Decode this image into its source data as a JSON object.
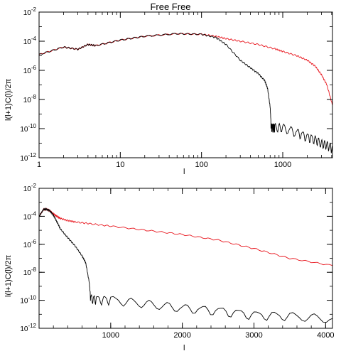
{
  "chart_data": [
    {
      "type": "line",
      "title": "Free Free",
      "xlabel": "l",
      "ylabel": "l(l+1)C(l)/2π",
      "xscale": "log",
      "yscale": "log",
      "xlim": [
        1,
        4096
      ],
      "ylim": [
        1e-12,
        0.01
      ],
      "xticks": [
        {
          "v": 1,
          "label": "1"
        },
        {
          "v": 10,
          "label": "10"
        },
        {
          "v": 100,
          "label": "100"
        },
        {
          "v": 1000,
          "label": "1000"
        }
      ],
      "yticks": [
        {
          "v": 0.01,
          "base": "10",
          "exp": "-2"
        },
        {
          "v": 0.0001,
          "base": "10",
          "exp": "-4"
        },
        {
          "v": 1e-06,
          "base": "10",
          "exp": "-6"
        },
        {
          "v": 1e-08,
          "base": "10",
          "exp": "-8"
        },
        {
          "v": 1e-10,
          "base": "10",
          "exp": "-10"
        },
        {
          "v": 1e-12,
          "base": "10",
          "exp": "-12"
        }
      ],
      "series": [
        {
          "color": "#e8141c",
          "x": [
            1,
            2,
            3,
            4,
            5,
            10,
            20,
            50,
            100,
            150,
            200,
            300,
            500,
            800,
            1000,
            1500,
            2000,
            2500,
            3000,
            3500,
            4096
          ],
          "y": [
            1.2e-05,
            4e-05,
            2.8e-05,
            6e-05,
            5e-05,
            0.00012,
            0.00022,
            0.00033,
            0.0003,
            0.00022,
            0.00015,
            0.0001,
            6e-05,
            3e-05,
            2e-05,
            1e-05,
            5e-06,
            2e-06,
            5e-07,
            1e-07,
            4e-09
          ]
        },
        {
          "color": "#000000",
          "x": [
            1,
            2,
            3,
            4,
            5,
            10,
            20,
            50,
            100,
            150,
            200,
            300,
            400,
            500,
            600,
            650,
            700,
            720,
            760,
            800,
            1000,
            1500,
            2000,
            2500,
            3000,
            3500,
            4096
          ],
          "y": [
            1.2e-05,
            4e-05,
            2.8e-05,
            6e-05,
            5e-05,
            0.00012,
            0.00022,
            0.00033,
            0.0003,
            0.00018,
            6e-05,
            5e-06,
            1.5e-06,
            6e-07,
            2e-07,
            6e-08,
            3e-09,
            1.5e-10,
            1.4e-10,
            1.3e-10,
            1.2e-10,
            6e-11,
            3e-11,
            2e-11,
            1e-11,
            8e-12,
            5e-12
          ]
        }
      ]
    },
    {
      "type": "line",
      "title": "",
      "xlabel": "l",
      "ylabel": "l(l+1)C(l)/2π",
      "xscale": "linear",
      "yscale": "log",
      "xlim": [
        0,
        4096
      ],
      "ylim": [
        1e-12,
        0.01
      ],
      "xticks": [
        {
          "v": 1000,
          "label": "1000"
        },
        {
          "v": 2000,
          "label": "2000"
        },
        {
          "v": 3000,
          "label": "3000"
        },
        {
          "v": 4000,
          "label": "4000"
        }
      ],
      "yticks": [
        {
          "v": 0.01,
          "base": "10",
          "exp": "-2"
        },
        {
          "v": 0.0001,
          "base": "10",
          "exp": "-4"
        },
        {
          "v": 1e-06,
          "base": "10",
          "exp": "-6"
        },
        {
          "v": 1e-08,
          "base": "10",
          "exp": "-8"
        },
        {
          "v": 1e-10,
          "base": "10",
          "exp": "-10"
        },
        {
          "v": 1e-12,
          "base": "10",
          "exp": "-12"
        }
      ],
      "series": [
        {
          "color": "#e8141c",
          "x": [
            0,
            60,
            100,
            150,
            200,
            250,
            300,
            400,
            500,
            700,
            1000,
            1500,
            2000,
            2500,
            3000,
            3500,
            4096
          ],
          "y": [
            0.0001,
            0.0003,
            0.00033,
            0.00025,
            0.00015,
            0.0001,
            7e-05,
            5e-05,
            4e-05,
            3e-05,
            2e-05,
            1e-05,
            5e-06,
            2e-06,
            5e-07,
            1e-07,
            3e-08
          ]
        },
        {
          "color": "#000000",
          "x": [
            0,
            60,
            100,
            150,
            200,
            250,
            300,
            400,
            500,
            600,
            650,
            700,
            720,
            800,
            1000,
            1500,
            2000,
            2500,
            3000,
            3500,
            4096
          ],
          "y": [
            0.0001,
            0.0003,
            0.00033,
            0.00025,
            0.00012,
            4e-05,
            1.2e-05,
            3e-06,
            8e-07,
            1.5e-07,
            5e-08,
            2e-09,
            1.5e-10,
            1.3e-10,
            1.2e-10,
            6e-11,
            3e-11,
            2e-11,
            1e-11,
            8e-12,
            5e-12
          ]
        }
      ]
    }
  ]
}
